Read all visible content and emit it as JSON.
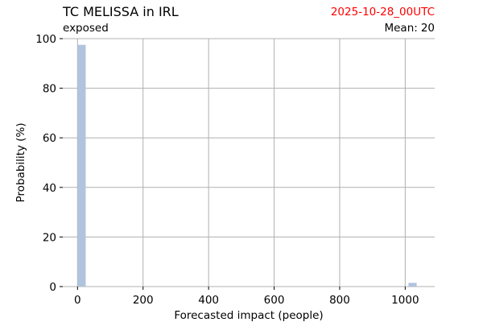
{
  "header": {
    "title": "TC MELISSA in IRL",
    "subtitle": "exposed",
    "date": "2025-10-28_00UTC",
    "mean_label": "Mean:",
    "mean_value": "20"
  },
  "chart_data": {
    "type": "bar",
    "title": "TC MELISSA in IRL",
    "xlabel": "Forecasted impact (people)",
    "ylabel": "Probability (%)",
    "xlim": [
      -45,
      1090
    ],
    "ylim": [
      0,
      100
    ],
    "xticks": [
      0,
      200,
      400,
      600,
      800,
      1000
    ],
    "yticks": [
      0,
      20,
      40,
      60,
      80,
      100
    ],
    "grid": true,
    "bar_color": "#b0c4de",
    "bins": [
      {
        "x0": 0,
        "x1": 25,
        "value": 97.5
      },
      {
        "x0": 1010,
        "x1": 1035,
        "value": 1.5
      }
    ]
  }
}
